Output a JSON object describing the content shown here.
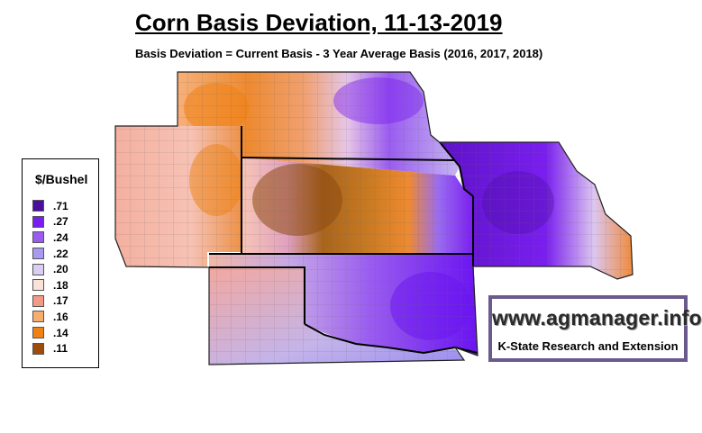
{
  "header": {
    "title": "Corn Basis Deviation, 11-13-2019",
    "subtitle": "Basis Deviation = Current Basis - 3 Year Average Basis (2016, 2017, 2018)"
  },
  "legend": {
    "title": "$/Bushel",
    "items": [
      {
        "label": ".71",
        "color": "#4b0e9e"
      },
      {
        "label": ".27",
        "color": "#7a1ef0"
      },
      {
        "label": ".24",
        "color": "#9a5cf0"
      },
      {
        "label": ".22",
        "color": "#a89af0"
      },
      {
        "label": ".20",
        "color": "#dccdf4"
      },
      {
        "label": ".18",
        "color": "#f9e2d6"
      },
      {
        "label": ".17",
        "color": "#f39a86"
      },
      {
        "label": ".16",
        "color": "#f5ae6e"
      },
      {
        "label": ".14",
        "color": "#ee8214"
      },
      {
        "label": ".11",
        "color": "#9e4c0a"
      }
    ]
  },
  "branding": {
    "url": "www.agmanager.info",
    "org": "K-State Research and Extension"
  }
}
